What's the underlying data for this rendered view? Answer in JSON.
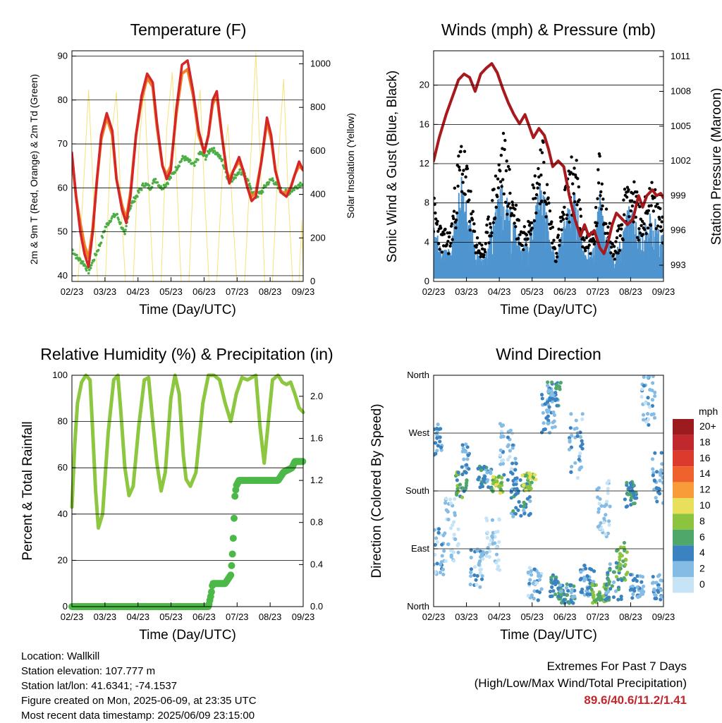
{
  "charts": {
    "temperature": {
      "title": "Temperature (F)",
      "ylabel_left": "2m & 9m T (Red, Orange) & 2m Td (Green)",
      "ylabel_right": "Solar Insolation (Yellow)",
      "xlabel": "Time (Day/UTC)",
      "xticks": [
        "02/23",
        "03/23",
        "04/23",
        "05/23",
        "06/23",
        "07/23",
        "08/23",
        "09/23"
      ],
      "yticks_left": [
        "40",
        "50",
        "60",
        "70",
        "80",
        "90"
      ],
      "yticks_right": [
        "0",
        "200",
        "400",
        "600",
        "800",
        "1000"
      ]
    },
    "winds": {
      "title": "Winds (mph) & Pressure (mb)",
      "ylabel_left": "Sonic Wind & Gust (Blue, Black)",
      "ylabel_right": "Station Pressure (Maroon)",
      "xlabel": "Time (Day/UTC)",
      "xticks": [
        "02/23",
        "03/23",
        "04/23",
        "05/23",
        "06/23",
        "07/23",
        "08/23",
        "09/23"
      ],
      "yticks_left": [
        "0",
        "4",
        "8",
        "12",
        "16",
        "20"
      ],
      "yticks_right": [
        "993",
        "996",
        "999",
        "1002",
        "1005",
        "1008",
        "1011"
      ]
    },
    "humidity": {
      "title": "Relative Humidity (%) & Precipitation (in)",
      "ylabel_left": "Percent & Total Rainfall",
      "xlabel": "Time (Day/UTC)",
      "xticks": [
        "02/23",
        "03/23",
        "04/23",
        "05/23",
        "06/23",
        "07/23",
        "08/23",
        "09/23"
      ],
      "yticks_left": [
        "0",
        "20",
        "40",
        "60",
        "80",
        "100"
      ],
      "yticks_right": [
        "0.0",
        "0.4",
        "0.8",
        "1.2",
        "1.6",
        "2.0"
      ]
    },
    "direction": {
      "title": "Wind Direction",
      "ylabel_left": "Direction (Colored By Speed)",
      "xlabel": "Time (Day/UTC)",
      "xticks": [
        "02/23",
        "03/23",
        "04/23",
        "05/23",
        "06/23",
        "07/23",
        "08/23",
        "09/23"
      ],
      "yticks_left": [
        "North",
        "East",
        "South",
        "West",
        "North"
      ],
      "legend_title": "mph",
      "legend_labels": [
        "20+",
        "18",
        "16",
        "14",
        "12",
        "10",
        "8",
        "6",
        "4",
        "2",
        "0"
      ],
      "legend_colors": [
        "#9b1b1e",
        "#c0282d",
        "#dc3a2c",
        "#f0622d",
        "#f89c3a",
        "#e8e05a",
        "#8cc43f",
        "#4fa86a",
        "#3a82c0",
        "#84bce6",
        "#c6e4f6"
      ]
    }
  },
  "series": {
    "temp_2m": [
      [
        0,
        68
      ],
      [
        0.15,
        58
      ],
      [
        0.3,
        50
      ],
      [
        0.45,
        45
      ],
      [
        0.6,
        42
      ],
      [
        0.75,
        50
      ],
      [
        0.9,
        62
      ],
      [
        1.05,
        72
      ],
      [
        1.25,
        77
      ],
      [
        1.45,
        73
      ],
      [
        1.6,
        62
      ],
      [
        1.8,
        55
      ],
      [
        1.95,
        52
      ],
      [
        2.1,
        58
      ],
      [
        2.3,
        72
      ],
      [
        2.5,
        81
      ],
      [
        2.7,
        86
      ],
      [
        2.9,
        84
      ],
      [
        3.05,
        75
      ],
      [
        3.25,
        65
      ],
      [
        3.4,
        62
      ],
      [
        3.55,
        64
      ],
      [
        3.75,
        78
      ],
      [
        3.95,
        88
      ],
      [
        4.15,
        89
      ],
      [
        4.35,
        82
      ],
      [
        4.55,
        73
      ],
      [
        4.75,
        68
      ],
      [
        4.9,
        72
      ],
      [
        5.05,
        80
      ],
      [
        5.2,
        82
      ],
      [
        5.4,
        71
      ],
      [
        5.55,
        64
      ],
      [
        5.65,
        61
      ],
      [
        5.8,
        64
      ],
      [
        6.0,
        67
      ],
      [
        6.15,
        64
      ],
      [
        6.3,
        60
      ],
      [
        6.45,
        57
      ],
      [
        6.6,
        58
      ],
      [
        6.8,
        66
      ],
      [
        7.0,
        76
      ],
      [
        7.15,
        72
      ],
      [
        7.3,
        64
      ],
      [
        7.5,
        59
      ],
      [
        7.7,
        58
      ],
      [
        7.85,
        60
      ],
      [
        8.0,
        63
      ],
      [
        8.15,
        66
      ],
      [
        8.3,
        64
      ]
    ],
    "temp_9m": [
      [
        0,
        67
      ],
      [
        0.15,
        58
      ],
      [
        0.3,
        52
      ],
      [
        0.45,
        47
      ],
      [
        0.6,
        44
      ],
      [
        0.75,
        51
      ],
      [
        0.9,
        62
      ],
      [
        1.05,
        71
      ],
      [
        1.25,
        76
      ],
      [
        1.45,
        72
      ],
      [
        1.6,
        62
      ],
      [
        1.8,
        56
      ],
      [
        1.95,
        53
      ],
      [
        2.1,
        59
      ],
      [
        2.3,
        72
      ],
      [
        2.5,
        80
      ],
      [
        2.7,
        85
      ],
      [
        2.9,
        83
      ],
      [
        3.05,
        74
      ],
      [
        3.25,
        65
      ],
      [
        3.4,
        63
      ],
      [
        3.55,
        65
      ],
      [
        3.75,
        77
      ],
      [
        3.95,
        86
      ],
      [
        4.15,
        87
      ],
      [
        4.35,
        81
      ],
      [
        4.55,
        72
      ],
      [
        4.75,
        68
      ],
      [
        4.9,
        72
      ],
      [
        5.05,
        79
      ],
      [
        5.2,
        81
      ],
      [
        5.4,
        71
      ],
      [
        5.55,
        64
      ],
      [
        5.65,
        62
      ],
      [
        5.8,
        64
      ],
      [
        6.0,
        66
      ],
      [
        6.15,
        64
      ],
      [
        6.3,
        60
      ],
      [
        6.45,
        58
      ],
      [
        6.6,
        59
      ],
      [
        6.8,
        66
      ],
      [
        7.0,
        75
      ],
      [
        7.15,
        71
      ],
      [
        7.3,
        64
      ],
      [
        7.5,
        59
      ],
      [
        7.7,
        59
      ],
      [
        7.85,
        60
      ],
      [
        8.0,
        63
      ],
      [
        8.15,
        65
      ],
      [
        8.3,
        64
      ]
    ],
    "dewpoint_2m": [
      [
        0,
        46
      ],
      [
        0.2,
        44
      ],
      [
        0.4,
        43
      ],
      [
        0.6,
        41
      ],
      [
        0.8,
        44
      ],
      [
        1.0,
        47
      ],
      [
        1.2,
        51
      ],
      [
        1.4,
        53
      ],
      [
        1.6,
        54
      ],
      [
        1.8,
        51
      ],
      [
        1.9,
        49
      ],
      [
        2.05,
        55
      ],
      [
        2.2,
        57
      ],
      [
        2.4,
        59
      ],
      [
        2.6,
        61
      ],
      [
        2.8,
        60
      ],
      [
        3.0,
        62
      ],
      [
        3.2,
        60
      ],
      [
        3.4,
        61
      ],
      [
        3.6,
        63
      ],
      [
        3.8,
        65
      ],
      [
        4.0,
        67
      ],
      [
        4.2,
        66
      ],
      [
        4.4,
        65
      ],
      [
        4.6,
        68
      ],
      [
        4.8,
        67
      ],
      [
        5.0,
        69
      ],
      [
        5.2,
        68
      ],
      [
        5.4,
        66
      ],
      [
        5.6,
        62
      ],
      [
        5.8,
        62
      ],
      [
        6.0,
        64
      ],
      [
        6.2,
        63
      ],
      [
        6.4,
        60
      ],
      [
        6.6,
        58
      ],
      [
        6.8,
        59
      ],
      [
        7.0,
        61
      ],
      [
        7.2,
        62
      ],
      [
        7.4,
        60
      ],
      [
        7.6,
        59
      ],
      [
        7.8,
        59
      ],
      [
        8.0,
        60
      ],
      [
        8.2,
        61
      ],
      [
        8.3,
        61
      ]
    ],
    "solar": [
      [
        0,
        0
      ],
      [
        0.22,
        0
      ],
      [
        0.45,
        520
      ],
      [
        0.6,
        880
      ],
      [
        0.75,
        460
      ],
      [
        0.92,
        0
      ],
      [
        1.2,
        0
      ],
      [
        1.4,
        650
      ],
      [
        1.6,
        870
      ],
      [
        1.75,
        380
      ],
      [
        1.92,
        0
      ],
      [
        2.2,
        0
      ],
      [
        2.4,
        600
      ],
      [
        2.6,
        900
      ],
      [
        2.75,
        440
      ],
      [
        2.92,
        0
      ],
      [
        3.2,
        0
      ],
      [
        3.4,
        700
      ],
      [
        3.6,
        960
      ],
      [
        3.75,
        500
      ],
      [
        3.92,
        0
      ],
      [
        4.2,
        0
      ],
      [
        4.4,
        620
      ],
      [
        4.6,
        880
      ],
      [
        4.75,
        430
      ],
      [
        4.92,
        0
      ],
      [
        5.2,
        0
      ],
      [
        5.4,
        500
      ],
      [
        5.6,
        720
      ],
      [
        5.75,
        350
      ],
      [
        5.92,
        0
      ],
      [
        6.2,
        0
      ],
      [
        6.45,
        650
      ],
      [
        6.6,
        1050
      ],
      [
        6.75,
        600
      ],
      [
        6.92,
        0
      ],
      [
        7.2,
        0
      ],
      [
        7.4,
        550
      ],
      [
        7.6,
        930
      ],
      [
        7.75,
        430
      ],
      [
        7.92,
        0
      ],
      [
        8.15,
        0
      ],
      [
        8.25,
        280
      ],
      [
        8.3,
        40
      ]
    ],
    "pressure": [
      [
        0,
        1002
      ],
      [
        0.2,
        1004
      ],
      [
        0.45,
        1006
      ],
      [
        0.75,
        1008
      ],
      [
        0.9,
        1009
      ],
      [
        1.1,
        1009.5
      ],
      [
        1.3,
        1009.2
      ],
      [
        1.5,
        1008
      ],
      [
        1.7,
        1009.5
      ],
      [
        1.9,
        1010
      ],
      [
        2.1,
        1010.4
      ],
      [
        2.3,
        1009.6
      ],
      [
        2.5,
        1008.2
      ],
      [
        2.7,
        1007
      ],
      [
        2.9,
        1006
      ],
      [
        3.1,
        1005.2
      ],
      [
        3.3,
        1006
      ],
      [
        3.45,
        1005
      ],
      [
        3.6,
        1004
      ],
      [
        3.8,
        1004.8
      ],
      [
        4.0,
        1004.2
      ],
      [
        4.15,
        1003
      ],
      [
        4.3,
        1001.5
      ],
      [
        4.5,
        1002
      ],
      [
        4.7,
        1001.5
      ],
      [
        4.9,
        999
      ],
      [
        5.1,
        997
      ],
      [
        5.3,
        995.5
      ],
      [
        5.45,
        996.5
      ],
      [
        5.6,
        995.5
      ],
      [
        5.8,
        996
      ],
      [
        6.0,
        994.5
      ],
      [
        6.15,
        994
      ],
      [
        6.3,
        995
      ],
      [
        6.45,
        996.5
      ],
      [
        6.6,
        997.5
      ],
      [
        6.8,
        997
      ],
      [
        7.0,
        996.5
      ],
      [
        7.2,
        997
      ],
      [
        7.4,
        999
      ],
      [
        7.55,
        998
      ],
      [
        7.7,
        999
      ],
      [
        7.9,
        999.5
      ],
      [
        8.05,
        999
      ],
      [
        8.2,
        999.2
      ],
      [
        8.3,
        998.8
      ]
    ],
    "humidity": [
      [
        0,
        43
      ],
      [
        0.1,
        70
      ],
      [
        0.2,
        88
      ],
      [
        0.35,
        97
      ],
      [
        0.5,
        100
      ],
      [
        0.65,
        98
      ],
      [
        0.75,
        75
      ],
      [
        0.85,
        50
      ],
      [
        0.95,
        34
      ],
      [
        1.1,
        40
      ],
      [
        1.3,
        75
      ],
      [
        1.5,
        98
      ],
      [
        1.65,
        100
      ],
      [
        1.75,
        85
      ],
      [
        1.9,
        60
      ],
      [
        2.05,
        48
      ],
      [
        2.2,
        52
      ],
      [
        2.4,
        78
      ],
      [
        2.6,
        98
      ],
      [
        2.75,
        99
      ],
      [
        2.9,
        80
      ],
      [
        3.05,
        62
      ],
      [
        3.2,
        50
      ],
      [
        3.35,
        58
      ],
      [
        3.55,
        90
      ],
      [
        3.7,
        100
      ],
      [
        3.85,
        92
      ],
      [
        4.0,
        65
      ],
      [
        4.1,
        55
      ],
      [
        4.25,
        52
      ],
      [
        4.45,
        58
      ],
      [
        4.7,
        88
      ],
      [
        4.9,
        100
      ],
      [
        5.1,
        100
      ],
      [
        5.3,
        98
      ],
      [
        5.5,
        88
      ],
      [
        5.7,
        80
      ],
      [
        5.9,
        92
      ],
      [
        6.1,
        99
      ],
      [
        6.3,
        98
      ],
      [
        6.45,
        99
      ],
      [
        6.6,
        100
      ],
      [
        6.75,
        78
      ],
      [
        6.9,
        62
      ],
      [
        7.05,
        80
      ],
      [
        7.2,
        98
      ],
      [
        7.4,
        100
      ],
      [
        7.55,
        97
      ],
      [
        7.7,
        96
      ],
      [
        7.85,
        97
      ],
      [
        8.0,
        92
      ],
      [
        8.15,
        86
      ],
      [
        8.3,
        84
      ]
    ],
    "rain": [
      [
        0,
        0
      ],
      [
        4.9,
        0
      ],
      [
        5.0,
        0.12
      ],
      [
        5.05,
        0.22
      ],
      [
        5.5,
        0.22
      ],
      [
        5.7,
        0.3
      ],
      [
        5.75,
        0.45
      ],
      [
        5.8,
        0.7
      ],
      [
        5.85,
        1.05
      ],
      [
        5.9,
        1.15
      ],
      [
        6.0,
        1.2
      ],
      [
        7.4,
        1.2
      ],
      [
        7.6,
        1.28
      ],
      [
        7.9,
        1.32
      ],
      [
        8.0,
        1.38
      ],
      [
        8.3,
        1.38
      ]
    ]
  },
  "info": {
    "location": "Location: Wallkill",
    "elevation": "Station elevation: 107.777 m",
    "latlon": "Station lat/lon: 41.6341; -74.1537",
    "created": "Figure created on Mon, 2025-06-09, at 23:35 UTC",
    "latest": "Most recent data timestamp: 2025/06/09 23:15:00"
  },
  "extremes": {
    "line1": "Extremes For Past 7 Days",
    "line2": "(High/Low/Max Wind/Total Precipitation)",
    "values": "89.6/40.6/11.2/1.41"
  }
}
